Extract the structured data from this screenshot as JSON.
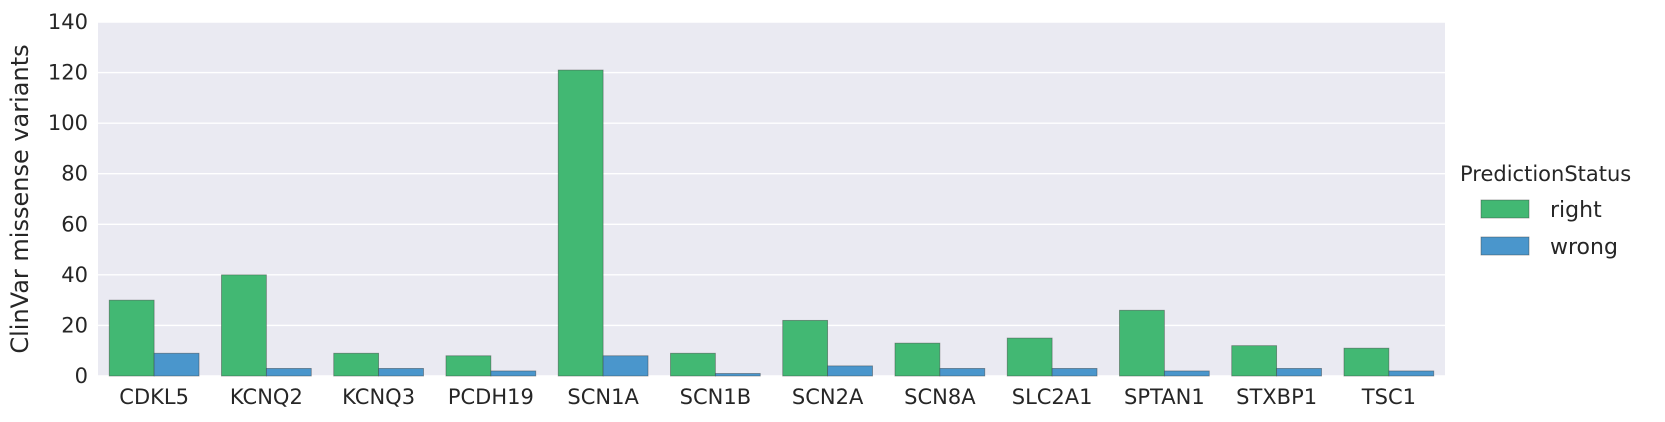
{
  "chart_data": {
    "type": "bar",
    "categories": [
      "CDKL5",
      "KCNQ2",
      "KCNQ3",
      "PCDH19",
      "SCN1A",
      "SCN1B",
      "SCN2A",
      "SCN8A",
      "SLC2A1",
      "SPTAN1",
      "STXBP1",
      "TSC1"
    ],
    "series": [
      {
        "name": "right",
        "color": "#42b873",
        "values": [
          30,
          40,
          9,
          8,
          121,
          9,
          22,
          13,
          15,
          26,
          12,
          11
        ]
      },
      {
        "name": "wrong",
        "color": "#4a96cc",
        "values": [
          9,
          3,
          3,
          2,
          8,
          1,
          4,
          3,
          3,
          2,
          3,
          2
        ]
      }
    ],
    "title": "",
    "xlabel": "",
    "ylabel": "ClinVar missense variants",
    "ylim": [
      0,
      140
    ],
    "yticks": [
      0,
      20,
      40,
      60,
      80,
      100,
      120,
      140
    ],
    "grid": true,
    "legend": {
      "title": "PredictionStatus",
      "placement": "right"
    },
    "background": "#eaeaf2"
  }
}
